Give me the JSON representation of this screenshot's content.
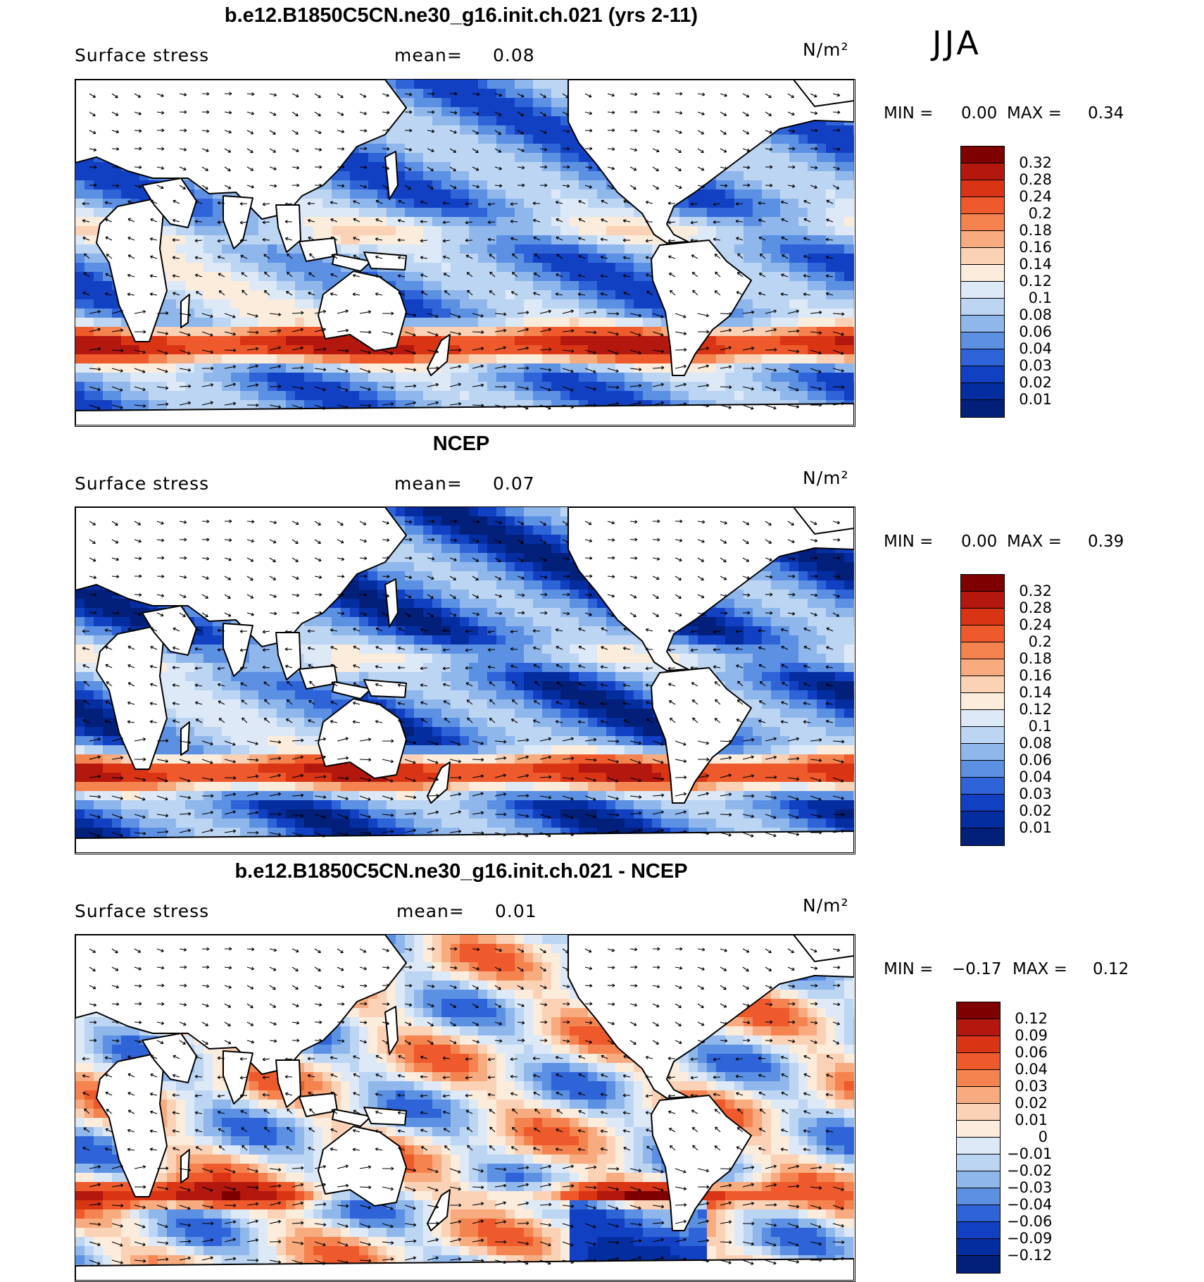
{
  "season": "JJA",
  "panels": [
    {
      "title": "b.e12.B1850C5CN.ne30_g16.init.ch.021 (yrs 2-11)",
      "variable": "Surface stress",
      "mean_label": "mean=",
      "mean_value": "0.08",
      "units": "N/m²",
      "min_label": "MIN =",
      "min_value": "0.00",
      "max_label": "MAX =",
      "max_value": "0.34",
      "colorbar_labels": [
        "0.32",
        "0.28",
        "0.24",
        "0.2",
        "0.18",
        "0.16",
        "0.14",
        "0.12",
        "0.1",
        "0.08",
        "0.06",
        "0.04",
        "0.03",
        "0.02",
        "0.01"
      ],
      "colorbar_colors": [
        "#7f0000",
        "#b3170e",
        "#d93515",
        "#ee5a2b",
        "#f5834f",
        "#f8ab7e",
        "#fcd2b6",
        "#fbecdc",
        "#dde9f7",
        "#bcd5f3",
        "#8fb7ec",
        "#5c90e3",
        "#2f64d8",
        "#1240c2",
        "#042ea0",
        "#021f7a"
      ],
      "map_style": "model"
    },
    {
      "title": "NCEP",
      "variable": "Surface stress",
      "mean_label": "mean=",
      "mean_value": "0.07",
      "units": "N/m²",
      "min_label": "MIN =",
      "min_value": "0.00",
      "max_label": "MAX =",
      "max_value": "0.39",
      "colorbar_labels": [
        "0.32",
        "0.28",
        "0.24",
        "0.2",
        "0.18",
        "0.16",
        "0.14",
        "0.12",
        "0.1",
        "0.08",
        "0.06",
        "0.04",
        "0.03",
        "0.02",
        "0.01"
      ],
      "colorbar_colors": [
        "#7f0000",
        "#b3170e",
        "#d93515",
        "#ee5a2b",
        "#f5834f",
        "#f8ab7e",
        "#fcd2b6",
        "#fbecdc",
        "#dde9f7",
        "#bcd5f3",
        "#8fb7ec",
        "#5c90e3",
        "#2f64d8",
        "#1240c2",
        "#042ea0",
        "#021f7a"
      ],
      "map_style": "obs"
    },
    {
      "title": "b.e12.B1850C5CN.ne30_g16.init.ch.021 - NCEP",
      "variable": "Surface stress",
      "mean_label": "mean=",
      "mean_value": "0.01",
      "units": "N/m²",
      "min_label": "MIN =",
      "min_value": "−0.17",
      "max_label": "MAX =",
      "max_value": "0.12",
      "colorbar_labels": [
        "0.12",
        "0.09",
        "0.06",
        "0.04",
        "0.03",
        "0.02",
        "0.01",
        "0",
        "−0.01",
        "−0.02",
        "−0.03",
        "−0.04",
        "−0.06",
        "−0.09",
        "−0.12"
      ],
      "colorbar_colors": [
        "#7f0000",
        "#b3170e",
        "#d93515",
        "#ee5a2b",
        "#f5834f",
        "#f8ab7e",
        "#fcd2b6",
        "#fbecdc",
        "#dde9f7",
        "#bcd5f3",
        "#8fb7ec",
        "#5c90e3",
        "#2f64d8",
        "#1240c2",
        "#042ea0",
        "#021f7a"
      ],
      "map_style": "diff"
    }
  ]
}
